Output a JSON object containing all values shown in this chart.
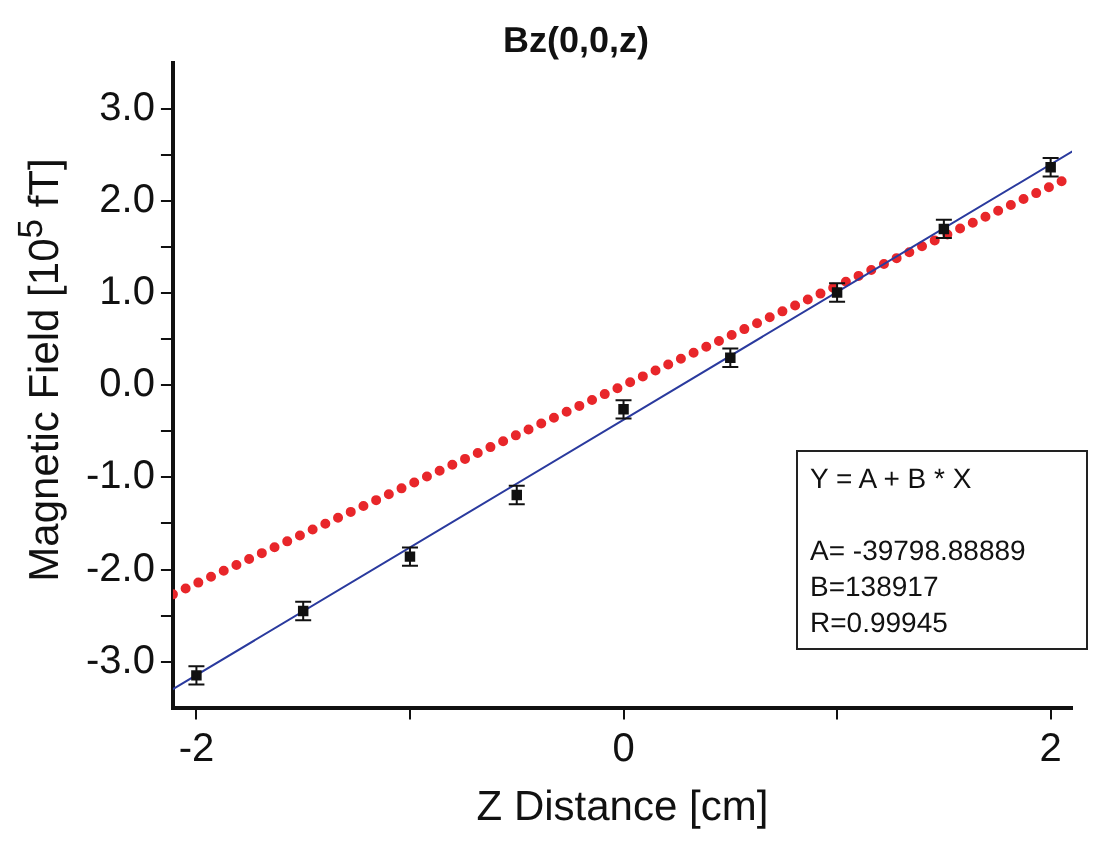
{
  "chart_data": {
    "type": "scatter",
    "title": "Bz(0,0,z)",
    "xlabel": "Z Distance [cm]",
    "ylabel": "Magnetic Field [10$^{5}$ fT]",
    "xlim": [
      -2.11,
      2.1
    ],
    "ylim": [
      -3.5,
      3.5
    ],
    "xticks": [
      -2,
      {
        "value": -1,
        "label": null
      },
      0,
      {
        "value": 1,
        "label": null
      },
      2
    ],
    "yticks": [
      {
        "value": -3,
        "label": "-3.0"
      },
      {
        "value": -2.5,
        "label": null
      },
      {
        "value": -2,
        "label": "-2.0"
      },
      {
        "value": -1.5,
        "label": null
      },
      {
        "value": -1,
        "label": "-1.0"
      },
      {
        "value": -0.5,
        "label": null
      },
      {
        "value": 0,
        "label": "0.0"
      },
      {
        "value": 0.5,
        "label": null
      },
      {
        "value": 1,
        "label": "1.0"
      },
      {
        "value": 1.5,
        "label": null
      },
      {
        "value": 2,
        "label": "2.0"
      },
      {
        "value": 2.5,
        "label": null
      },
      {
        "value": 3,
        "label": "3.0"
      }
    ],
    "grid": false,
    "legend": false,
    "series": [
      {
        "type": "scatter",
        "color": "#111111",
        "marker": "square",
        "x": [
          -2,
          -1.5,
          -1,
          -0.5,
          0,
          0.5,
          1,
          1.5,
          2
        ],
        "values": [
          -3.15,
          -2.45,
          -1.86,
          -1.19,
          -0.26,
          0.3,
          1.01,
          1.7,
          2.37
        ],
        "errors": [
          0.1,
          0.1,
          0.1,
          0.1,
          0.1,
          0.1,
          0.1,
          0.1,
          0.1
        ]
      },
      {
        "type": "line",
        "color": "#2a3a9e",
        "marker": "none",
        "line_style": "solid",
        "x": [
          -2.11,
          2.1
        ],
        "values": [
          -3.3,
          2.54
        ]
      },
      {
        "type": "line",
        "color": "#e8262a",
        "marker": "none",
        "line_style": "dotted",
        "x": [
          -2.11,
          0,
          2.1
        ],
        "values": [
          -2.27,
          0,
          2.27
        ]
      }
    ],
    "annotations": [
      "Y = A + B * X",
      "A= -39798.88889",
      "B=138917",
      "R=0.99945"
    ]
  }
}
